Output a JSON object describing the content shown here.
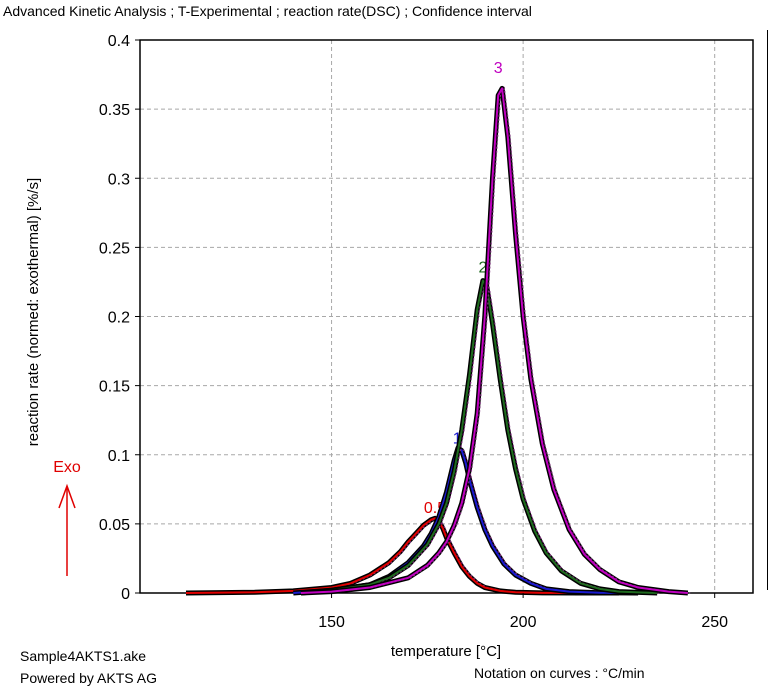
{
  "title": "Advanced Kinetic Analysis ; T-Experimental ; reaction rate(DSC) ; Confidence interval",
  "footer": {
    "file_name": "Sample4AKTS1.ake",
    "powered_by": "Powered by AKTS AG",
    "notation": "Notation on curves : °C/min"
  },
  "exo_label": "Exo",
  "colors": {
    "curve_0_5": "#e00000",
    "curve_1": "#1a1ad0",
    "curve_2": "#1f6b1f",
    "curve_3": "#c000c0",
    "experimental_line": "#000000",
    "confidence_line": "#7a2a7a",
    "exo_arrow": "#e00000"
  },
  "chart_data": {
    "type": "line",
    "title": "Advanced Kinetic Analysis ; T-Experimental ; reaction rate(DSC) ; Confidence interval",
    "xlabel": "temperature [°C]",
    "ylabel": "reaction rate (normed: exothermal) [%/s]",
    "xlim": [
      100,
      260
    ],
    "ylim": [
      0,
      0.4
    ],
    "xticks": [
      150,
      200,
      250
    ],
    "yticks": [
      0,
      0.05,
      0.1,
      0.15,
      0.2,
      0.25,
      0.3,
      0.35,
      0.4
    ],
    "grid": true,
    "series": [
      {
        "name": "0.5",
        "label_at": [
          177,
          0.058
        ],
        "x": [
          112,
          130,
          140,
          150,
          155,
          160,
          165,
          168,
          170,
          172,
          174,
          176,
          177,
          178,
          179,
          180,
          182,
          184,
          186,
          188,
          190,
          194,
          198,
          205,
          215,
          225
        ],
        "y": [
          0,
          0.0005,
          0.0015,
          0.004,
          0.007,
          0.013,
          0.022,
          0.03,
          0.037,
          0.043,
          0.049,
          0.053,
          0.054,
          0.052,
          0.047,
          0.04,
          0.029,
          0.019,
          0.012,
          0.007,
          0.004,
          0.0015,
          0.0005,
          0.0001,
          0,
          0
        ]
      },
      {
        "name": "1",
        "label_at": [
          182.8,
          0.108
        ],
        "x": [
          140,
          150,
          160,
          165,
          170,
          174,
          176,
          178,
          180,
          182,
          183,
          184,
          185,
          186,
          188,
          190,
          192,
          195,
          198,
          202,
          206,
          212,
          220,
          230
        ],
        "y": [
          0,
          0.002,
          0.006,
          0.012,
          0.022,
          0.034,
          0.043,
          0.055,
          0.073,
          0.096,
          0.105,
          0.103,
          0.094,
          0.082,
          0.062,
          0.046,
          0.034,
          0.021,
          0.013,
          0.007,
          0.003,
          0.001,
          0.0002,
          0
        ]
      },
      {
        "name": "2",
        "label_at": [
          189.5,
          0.232
        ],
        "x": [
          142,
          150,
          160,
          165,
          170,
          175,
          178,
          180,
          182,
          184,
          186,
          188,
          189.5,
          190.5,
          192,
          194,
          196,
          198,
          200,
          203,
          206,
          210,
          215,
          220,
          225,
          235
        ],
        "y": [
          0,
          0.002,
          0.006,
          0.011,
          0.02,
          0.035,
          0.05,
          0.065,
          0.088,
          0.118,
          0.158,
          0.205,
          0.226,
          0.222,
          0.195,
          0.155,
          0.118,
          0.09,
          0.068,
          0.045,
          0.029,
          0.016,
          0.007,
          0.003,
          0.001,
          0
        ]
      },
      {
        "name": "3",
        "label_at": [
          193.5,
          0.376
        ],
        "x": [
          142,
          150,
          160,
          170,
          175,
          178,
          180,
          182,
          184,
          186,
          188,
          190,
          192,
          193.5,
          194.5,
          196,
          198,
          200,
          202,
          205,
          208,
          212,
          216,
          220,
          225,
          230,
          238,
          243
        ],
        "y": [
          0,
          0.001,
          0.004,
          0.011,
          0.02,
          0.029,
          0.037,
          0.049,
          0.065,
          0.09,
          0.13,
          0.2,
          0.3,
          0.36,
          0.365,
          0.33,
          0.26,
          0.2,
          0.155,
          0.108,
          0.075,
          0.046,
          0.028,
          0.017,
          0.008,
          0.004,
          0.001,
          0
        ]
      }
    ]
  }
}
